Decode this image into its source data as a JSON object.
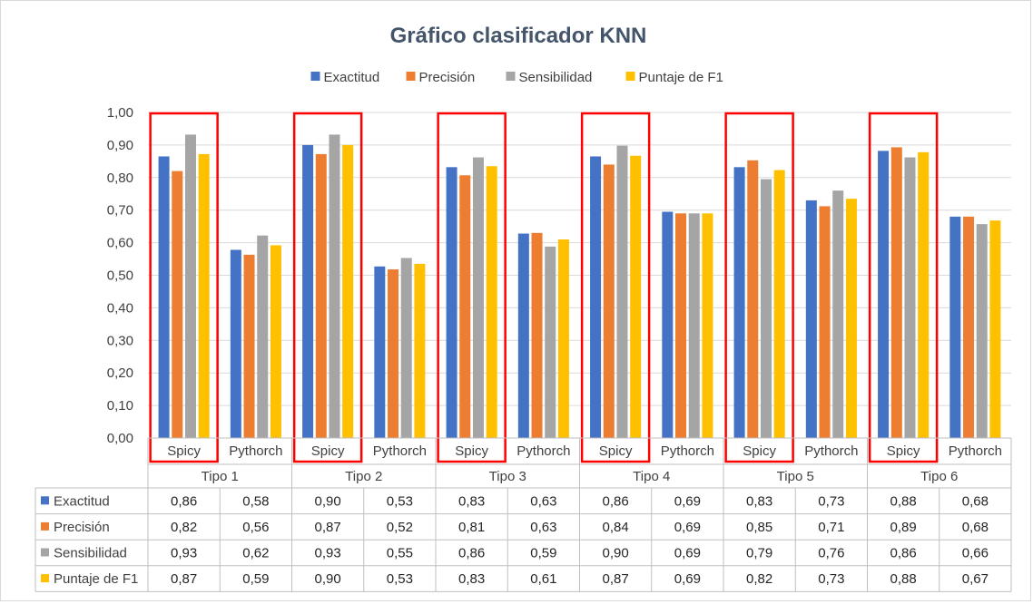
{
  "chart_data": {
    "type": "bar",
    "title": "Gráfico clasificador KNN",
    "groups": [
      "Tipo 1",
      "Tipo 2",
      "Tipo 3",
      "Tipo 4",
      "Tipo 5",
      "Tipo 6"
    ],
    "subcategories": [
      "Spicy",
      "Pythorch"
    ],
    "highlighted_subcategory": "Spicy",
    "ylim": [
      0,
      1
    ],
    "yticks": [
      "0,00",
      "0,10",
      "0,20",
      "0,30",
      "0,40",
      "0,50",
      "0,60",
      "0,70",
      "0,80",
      "0,90",
      "1,00"
    ],
    "grid": true,
    "legend_position": "top",
    "series": [
      {
        "name": "Exactitud",
        "color": "#4472c4",
        "values": [
          0.865,
          0.578,
          0.9,
          0.527,
          0.832,
          0.628,
          0.865,
          0.695,
          0.832,
          0.73,
          0.882,
          0.68
        ],
        "labels": [
          "0,86",
          "0,58",
          "0,90",
          "0,53",
          "0,83",
          "0,63",
          "0,86",
          "0,69",
          "0,83",
          "0,73",
          "0,88",
          "0,68"
        ]
      },
      {
        "name": "Precisión",
        "color": "#ed7d31",
        "values": [
          0.82,
          0.563,
          0.872,
          0.518,
          0.807,
          0.63,
          0.84,
          0.69,
          0.853,
          0.712,
          0.893,
          0.68
        ],
        "labels": [
          "0,82",
          "0,56",
          "0,87",
          "0,52",
          "0,81",
          "0,63",
          "0,84",
          "0,69",
          "0,85",
          "0,71",
          "0,89",
          "0,68"
        ]
      },
      {
        "name": "Sensibilidad",
        "color": "#a5a5a5",
        "values": [
          0.932,
          0.622,
          0.932,
          0.553,
          0.862,
          0.588,
          0.898,
          0.69,
          0.795,
          0.76,
          0.862,
          0.657
        ],
        "labels": [
          "0,93",
          "0,62",
          "0,93",
          "0,55",
          "0,86",
          "0,59",
          "0,90",
          "0,69",
          "0,79",
          "0,76",
          "0,86",
          "0,66"
        ]
      },
      {
        "name": "Puntaje de F1",
        "color": "#ffc000",
        "values": [
          0.872,
          0.592,
          0.9,
          0.535,
          0.835,
          0.61,
          0.867,
          0.69,
          0.823,
          0.735,
          0.878,
          0.668
        ],
        "labels": [
          "0,87",
          "0,59",
          "0,90",
          "0,53",
          "0,83",
          "0,61",
          "0,87",
          "0,69",
          "0,82",
          "0,73",
          "0,88",
          "0,67"
        ]
      }
    ]
  }
}
